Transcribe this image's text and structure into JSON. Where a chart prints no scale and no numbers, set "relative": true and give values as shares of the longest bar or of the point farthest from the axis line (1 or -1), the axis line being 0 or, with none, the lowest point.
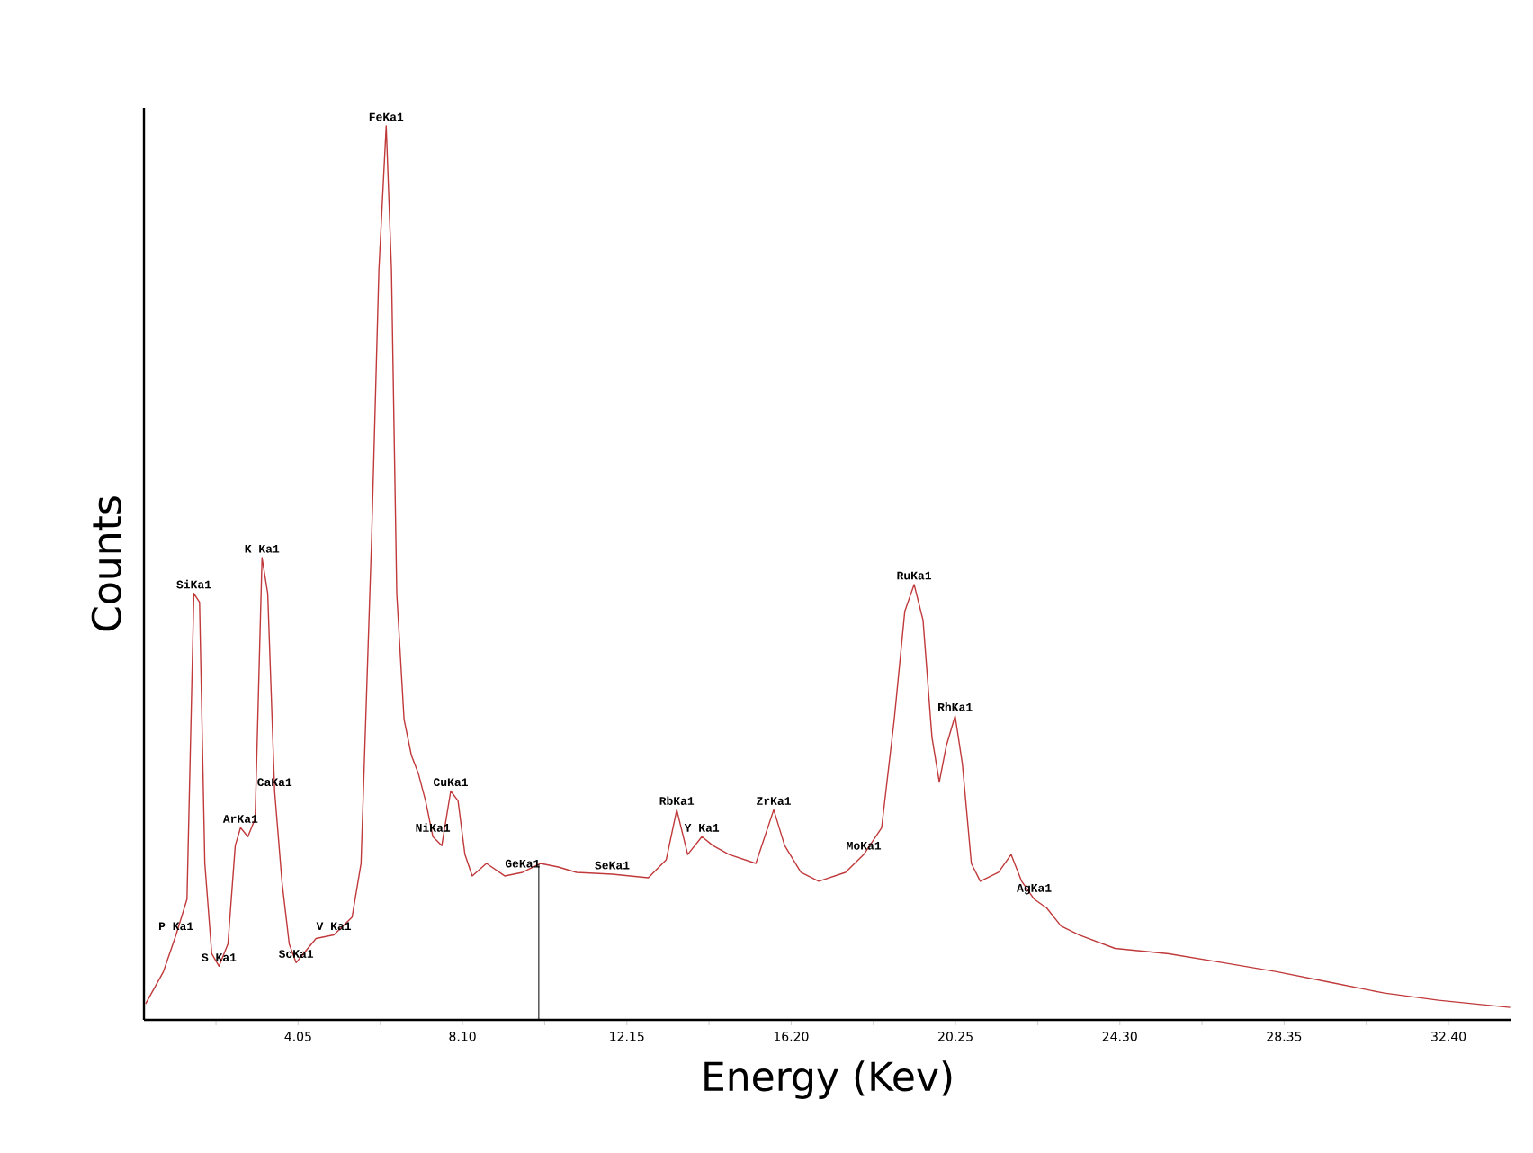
{
  "chart_data": {
    "type": "line",
    "relative": true,
    "xlabel": "Energy (Kev)",
    "ylabel": "Counts",
    "marker": "none",
    "line_style": "solid",
    "grid": false,
    "xlim": [
      0.25,
      33.95
    ],
    "xticks": [
      {
        "value": 2.025,
        "label": null
      },
      {
        "value": 4.05,
        "label": "4.05"
      },
      {
        "value": 6.075,
        "label": null
      },
      {
        "value": 8.1,
        "label": "8.10"
      },
      {
        "value": 10.125,
        "label": null
      },
      {
        "value": 12.15,
        "label": "12.15"
      },
      {
        "value": 14.175,
        "label": null
      },
      {
        "value": 16.2,
        "label": "16.20"
      },
      {
        "value": 18.225,
        "label": null
      },
      {
        "value": 20.25,
        "label": "20.25"
      },
      {
        "value": 22.275,
        "label": null
      },
      {
        "value": 24.3,
        "label": "24.30"
      },
      {
        "value": 26.325,
        "label": null
      },
      {
        "value": 28.35,
        "label": "28.35"
      },
      {
        "value": 30.375,
        "label": null
      },
      {
        "value": 32.4,
        "label": "32.40"
      }
    ],
    "series": [
      {
        "color": "#c0393b",
        "x": [
          0.29,
          0.73,
          1.04,
          1.31,
          1.48,
          1.62,
          1.75,
          1.92,
          2.1,
          2.32,
          2.5,
          2.63,
          2.81,
          2.99,
          3.16,
          3.3,
          3.47,
          3.65,
          3.83,
          4.0,
          4.18,
          4.49,
          4.93,
          5.38,
          5.6,
          5.86,
          6.04,
          6.22,
          6.35,
          6.48,
          6.66,
          6.84,
          7.01,
          7.19,
          7.37,
          7.59,
          7.81,
          7.99,
          8.16,
          8.34,
          8.69,
          9.14,
          9.58,
          10.02,
          10.46,
          10.91,
          11.79,
          12.68,
          13.12,
          13.38,
          13.65,
          14.0,
          14.27,
          14.67,
          15.33,
          15.77,
          16.04,
          16.44,
          16.88,
          17.54,
          17.99,
          18.43,
          18.74,
          19.0,
          19.23,
          19.45,
          19.67,
          19.85,
          20.02,
          20.24,
          20.42,
          20.64,
          20.86,
          21.31,
          21.62,
          21.88,
          22.19,
          22.5,
          22.85,
          23.3,
          24.18,
          25.51,
          26.84,
          28.16,
          29.49,
          30.82,
          32.15,
          33.92
        ],
        "values": [
          0.018,
          0.054,
          0.095,
          0.135,
          0.477,
          0.467,
          0.175,
          0.074,
          0.06,
          0.085,
          0.195,
          0.215,
          0.205,
          0.225,
          0.517,
          0.477,
          0.256,
          0.155,
          0.085,
          0.064,
          0.074,
          0.091,
          0.095,
          0.115,
          0.175,
          0.537,
          0.839,
          1.0,
          0.839,
          0.477,
          0.336,
          0.296,
          0.276,
          0.245,
          0.205,
          0.195,
          0.256,
          0.245,
          0.185,
          0.161,
          0.175,
          0.161,
          0.165,
          0.175,
          0.171,
          0.165,
          0.163,
          0.159,
          0.179,
          0.235,
          0.185,
          0.205,
          0.195,
          0.185,
          0.175,
          0.235,
          0.195,
          0.165,
          0.155,
          0.165,
          0.185,
          0.215,
          0.336,
          0.457,
          0.487,
          0.447,
          0.316,
          0.266,
          0.306,
          0.34,
          0.286,
          0.175,
          0.155,
          0.165,
          0.185,
          0.155,
          0.135,
          0.125,
          0.105,
          0.095,
          0.08,
          0.074,
          0.064,
          0.054,
          0.042,
          0.03,
          0.022,
          0.014
        ]
      }
    ],
    "ref_lines": [
      {
        "axis": "x",
        "value": 9.98,
        "color": "#000000"
      }
    ],
    "annotations": [
      {
        "text": "SiKa1",
        "x": 1.48,
        "y": 0.477
      },
      {
        "text": "K Ka1",
        "x": 3.16,
        "y": 0.517
      },
      {
        "text": "FeKa1",
        "x": 6.22,
        "y": 1.0
      },
      {
        "text": "CaKa1",
        "x": 3.47,
        "y": 0.256
      },
      {
        "text": "ArKa1",
        "x": 2.63,
        "y": 0.215
      },
      {
        "text": "S Ka1",
        "x": 2.1,
        "y": 0.06
      },
      {
        "text": "P Ka1",
        "x": 1.04,
        "y": 0.095
      },
      {
        "text": "ScKa1",
        "x": 4.0,
        "y": 0.064
      },
      {
        "text": "V Ka1",
        "x": 4.93,
        "y": 0.095
      },
      {
        "text": "CuKa1",
        "x": 7.81,
        "y": 0.256
      },
      {
        "text": "NiKa1",
        "x": 7.37,
        "y": 0.205
      },
      {
        "text": "GeKa1",
        "x": 9.58,
        "y": 0.165
      },
      {
        "text": "SeKa1",
        "x": 11.79,
        "y": 0.163
      },
      {
        "text": "RbKa1",
        "x": 13.38,
        "y": 0.235
      },
      {
        "text": "Y Ka1",
        "x": 14.0,
        "y": 0.205
      },
      {
        "text": "ZrKa1",
        "x": 15.77,
        "y": 0.235
      },
      {
        "text": "MoKa1",
        "x": 17.99,
        "y": 0.185
      },
      {
        "text": "RuKa1",
        "x": 19.23,
        "y": 0.487
      },
      {
        "text": "RhKa1",
        "x": 20.24,
        "y": 0.34
      },
      {
        "text": "AgKa1",
        "x": 22.19,
        "y": 0.135
      }
    ]
  }
}
